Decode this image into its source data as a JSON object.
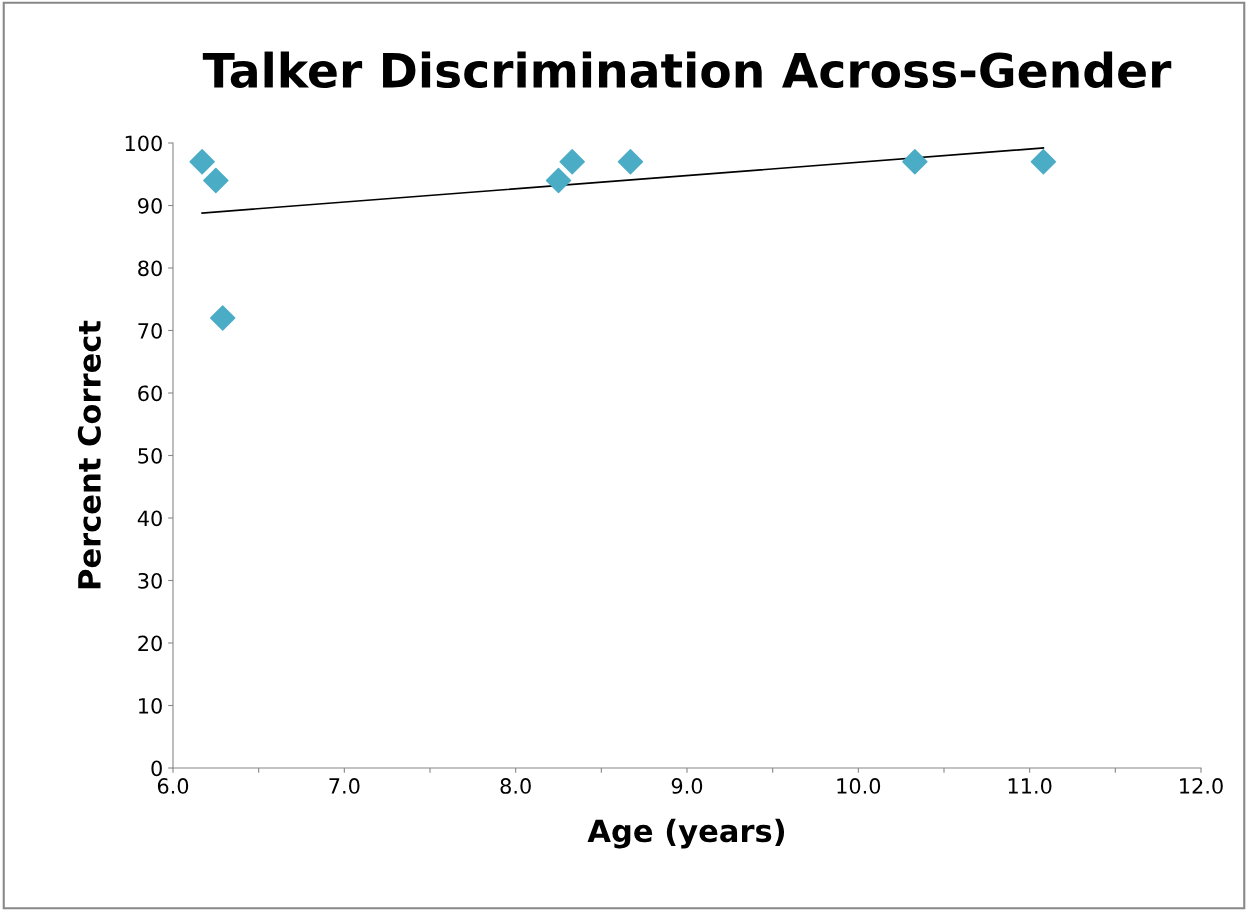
{
  "chart_data": {
    "type": "scatter",
    "title": "Talker Discrimination Across-Gender",
    "xlabel": "Age (years)",
    "ylabel": "Percent Correct",
    "series": [
      {
        "color": "#4bacc6",
        "marker": "diamond",
        "x": [
          6.17,
          6.25,
          6.29,
          8.25,
          8.33,
          8.67,
          10.33,
          11.08
        ],
        "values": [
          97,
          94,
          72,
          94,
          97,
          97,
          97,
          97
        ]
      },
      {
        "type": "line",
        "color": "#000000",
        "marker": "none",
        "x": [
          6.17,
          11.08
        ],
        "values": [
          88.8,
          99.2
        ]
      }
    ],
    "xlim": [
      6.0,
      12.0
    ],
    "ylim": [
      0,
      100
    ],
    "xticks": [
      {
        "value": 6.0,
        "label": "6.0"
      },
      {
        "value": 6.5,
        "label": null
      },
      {
        "value": 7.0,
        "label": "7.0"
      },
      {
        "value": 7.5,
        "label": null
      },
      {
        "value": 8.0,
        "label": "8.0"
      },
      {
        "value": 8.5,
        "label": null
      },
      {
        "value": 9.0,
        "label": "9.0"
      },
      {
        "value": 9.5,
        "label": null
      },
      {
        "value": 10.0,
        "label": "10.0"
      },
      {
        "value": 10.5,
        "label": null
      },
      {
        "value": 11.0,
        "label": "11.0"
      },
      {
        "value": 11.5,
        "label": null
      },
      {
        "value": 12.0,
        "label": "12.0"
      }
    ],
    "yticks": [
      0,
      10,
      20,
      30,
      40,
      50,
      60,
      70,
      80,
      90,
      100
    ],
    "grid": false,
    "legend": false
  }
}
